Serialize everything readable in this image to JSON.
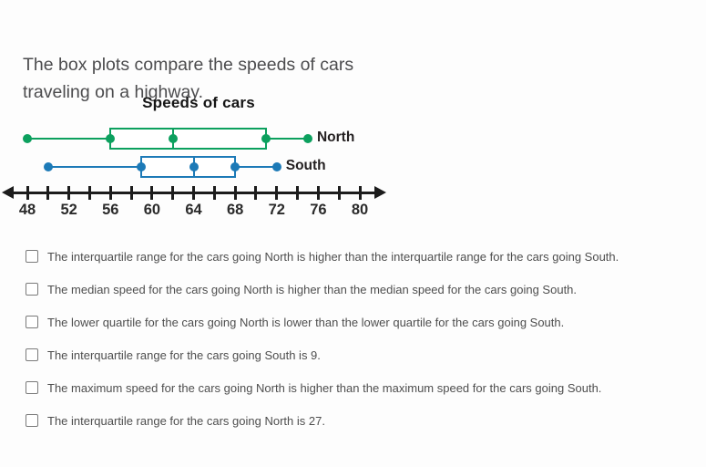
{
  "question": {
    "intro": "The box plots compare the speeds of cars traveling on a highway."
  },
  "chart_data": {
    "type": "boxplot",
    "title": "Speeds of cars",
    "orientation": "horizontal",
    "axis": {
      "min": 48,
      "max": 80,
      "tick_step": 2,
      "tick_labels": [
        48,
        52,
        56,
        60,
        64,
        68,
        72,
        76,
        80
      ]
    },
    "series": [
      {
        "name": "North",
        "color": "#0ca05e",
        "min": 48,
        "q1": 56,
        "median": 62,
        "q3": 71,
        "max": 75
      },
      {
        "name": "South",
        "color": "#1d7ab7",
        "min": 50,
        "q1": 59,
        "median": 64,
        "q3": 68,
        "max": 72
      }
    ]
  },
  "options": [
    {
      "label": "The interquartile range for the cars going North is higher than the interquartile range for the cars going South.",
      "checked": false
    },
    {
      "label": "The median speed for the cars going North is higher than the median speed for the cars going South.",
      "checked": false
    },
    {
      "label": "The lower quartile for the cars going North is lower than the lower quartile for the cars going South.",
      "checked": false
    },
    {
      "label": "The interquartile range for the cars going South is 9.",
      "checked": false
    },
    {
      "label": "The maximum speed for the cars going North is higher than the maximum speed for the cars going South.",
      "checked": false
    },
    {
      "label": "The interquartile range for the cars going North is 27.",
      "checked": false
    }
  ]
}
